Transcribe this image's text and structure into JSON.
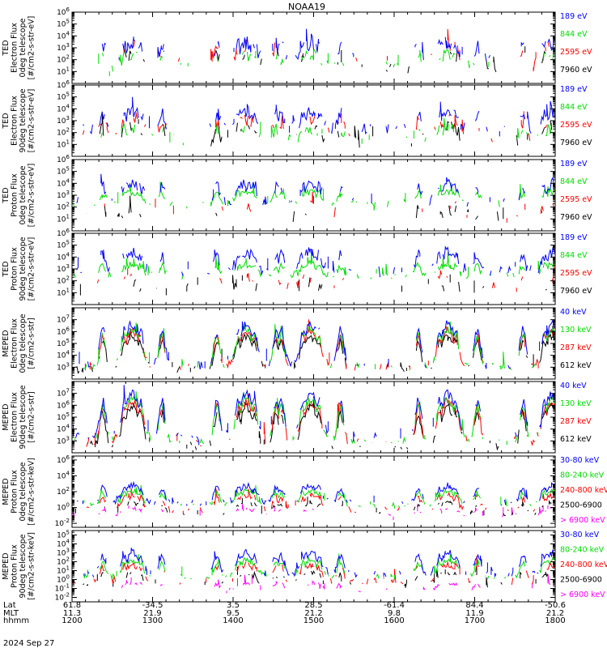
{
  "title": "NOAA19",
  "date_label": "2024 Sep 27",
  "chart_data": [
    {
      "type": "line",
      "ylabel": [
        "TED",
        "Electron Flux",
        "0deg telescope",
        "[#/cm2-s-str-eV]"
      ],
      "log_ticks": [
        1,
        2,
        3,
        4,
        5,
        6
      ],
      "ylim_exp": [
        0,
        6
      ],
      "series": [
        {
          "name": "7960 eV",
          "color": "#000000",
          "base": 1.4,
          "amp": 1.2,
          "noise": 0.6,
          "mask": 0.35
        },
        {
          "name": "2595 eV",
          "color": "#ff0000",
          "base": 1.8,
          "amp": 1.4,
          "noise": 0.6,
          "mask": 0.35
        },
        {
          "name": "844 eV",
          "color": "#00dd00",
          "base": 1.4,
          "amp": 1.0,
          "noise": 0.5,
          "mask": 0.45
        },
        {
          "name": "189 eV",
          "color": "#0000ff",
          "base": 2.0,
          "amp": 1.4,
          "noise": 0.6,
          "mask": 0.7
        }
      ]
    },
    {
      "type": "line",
      "ylabel": [
        "TED",
        "Electron Flux",
        "90deg telescope",
        "[#/cm2-s-str-eV]"
      ],
      "log_ticks": [
        1,
        2,
        3,
        4,
        5,
        6
      ],
      "ylim_exp": [
        0,
        6
      ],
      "series": [
        {
          "name": "7960 eV",
          "color": "#000000",
          "base": 1.2,
          "amp": 1.3,
          "noise": 0.6,
          "mask": 0.45
        },
        {
          "name": "2595 eV",
          "color": "#ff0000",
          "base": 1.8,
          "amp": 1.3,
          "noise": 0.6,
          "mask": 0.45
        },
        {
          "name": "844 eV",
          "color": "#00dd00",
          "base": 1.4,
          "amp": 1.0,
          "noise": 0.5,
          "mask": 0.5
        },
        {
          "name": "189 eV",
          "color": "#0000ff",
          "base": 2.3,
          "amp": 1.5,
          "noise": 0.5,
          "mask": 0.8
        }
      ]
    },
    {
      "type": "line",
      "ylabel": [
        "TED",
        "Proton Flux",
        "0deg telescope",
        "[#/cm2-s-str-eV]"
      ],
      "log_ticks": [
        1,
        2,
        3,
        4,
        5,
        6
      ],
      "ylim_exp": [
        0,
        6
      ],
      "series": [
        {
          "name": "7960 eV",
          "color": "#000000",
          "base": 1.2,
          "amp": 0.5,
          "noise": 0.6,
          "mask": 0.3
        },
        {
          "name": "2595 eV",
          "color": "#ff0000",
          "base": 1.5,
          "amp": 0.6,
          "noise": 0.5,
          "mask": 0.25
        },
        {
          "name": "844 eV",
          "color": "#00dd00",
          "base": 2.3,
          "amp": 1.0,
          "noise": 0.3,
          "mask": 0.95
        },
        {
          "name": "189 eV",
          "color": "#0000ff",
          "base": 2.4,
          "amp": 1.6,
          "noise": 0.5,
          "mask": 0.75
        }
      ]
    },
    {
      "type": "line",
      "ylabel": [
        "TED",
        "Proton Flux",
        "90deg telescope",
        "[#/cm2-s-str-eV]"
      ],
      "log_ticks": [
        1,
        2,
        3,
        4,
        5,
        6
      ],
      "ylim_exp": [
        0,
        6
      ],
      "series": [
        {
          "name": "7960 eV",
          "color": "#000000",
          "base": 1.2,
          "amp": 0.5,
          "noise": 0.6,
          "mask": 0.3
        },
        {
          "name": "2595 eV",
          "color": "#ff0000",
          "base": 1.5,
          "amp": 0.8,
          "noise": 0.5,
          "mask": 0.3
        },
        {
          "name": "844 eV",
          "color": "#00dd00",
          "base": 2.4,
          "amp": 1.0,
          "noise": 0.3,
          "mask": 0.95
        },
        {
          "name": "189 eV",
          "color": "#0000ff",
          "base": 2.8,
          "amp": 1.6,
          "noise": 0.5,
          "mask": 0.8
        }
      ]
    },
    {
      "type": "line",
      "ylabel": [
        "MEPED",
        "Electron Flux",
        "0deg telescope",
        "[#/cm2-s-str]"
      ],
      "log_ticks": [
        3,
        4,
        5,
        6,
        7
      ],
      "ylim_exp": [
        2,
        8
      ],
      "series": [
        {
          "name": "612 keV",
          "color": "#000000",
          "base": 2.8,
          "amp": 2.8,
          "noise": 0.3,
          "mask": 0.85
        },
        {
          "name": "287 keV",
          "color": "#ff0000",
          "base": 3.0,
          "amp": 3.0,
          "noise": 0.3,
          "mask": 0.85
        },
        {
          "name": "130 keV",
          "color": "#00dd00",
          "base": 3.0,
          "amp": 3.2,
          "noise": 0.3,
          "mask": 0.85
        },
        {
          "name": "40 keV",
          "color": "#0000ff",
          "base": 3.2,
          "amp": 3.4,
          "noise": 0.4,
          "mask": 0.85
        }
      ]
    },
    {
      "type": "line",
      "ylabel": [
        "MEPED",
        "Electron Flux",
        "90deg telescope",
        "[#/cm2-s-str]"
      ],
      "log_ticks": [
        3,
        4,
        5,
        6,
        7
      ],
      "ylim_exp": [
        2,
        8
      ],
      "series": [
        {
          "name": "612 keV",
          "color": "#000000",
          "base": 2.6,
          "amp": 3.2,
          "noise": 0.4,
          "mask": 0.8
        },
        {
          "name": "287 keV",
          "color": "#ff0000",
          "base": 2.9,
          "amp": 3.4,
          "noise": 0.4,
          "mask": 0.85
        },
        {
          "name": "130 keV",
          "color": "#00dd00",
          "base": 3.0,
          "amp": 3.5,
          "noise": 0.3,
          "mask": 0.85
        },
        {
          "name": "40 keV",
          "color": "#0000ff",
          "base": 3.3,
          "amp": 3.6,
          "noise": 0.4,
          "mask": 0.85
        }
      ]
    },
    {
      "type": "line",
      "ylabel": [
        "MEPED",
        "Proton Flux",
        "0deg telescope",
        "[#/cm2-s-str-keV]"
      ],
      "log_ticks": [
        -2,
        0,
        2,
        4,
        6
      ],
      "ylim_exp": [
        -2.5,
        6.5
      ],
      "series": [
        {
          "name": "> 6900 keV",
          "color": "#ff00ff",
          "base": -1.0,
          "amp": 0.8,
          "noise": 0.2,
          "mask": 0.5
        },
        {
          "name": "2500-6900",
          "color": "#000000",
          "base": -0.8,
          "amp": 1.4,
          "noise": 0.3,
          "mask": 0.5
        },
        {
          "name": "240-800 keV",
          "color": "#ff0000",
          "base": -0.3,
          "amp": 1.8,
          "noise": 0.4,
          "mask": 0.7
        },
        {
          "name": "80-240 keV",
          "color": "#00dd00",
          "base": 0.3,
          "amp": 1.8,
          "noise": 0.3,
          "mask": 0.9
        },
        {
          "name": "30-80 keV",
          "color": "#0000ff",
          "base": 0.6,
          "amp": 2.2,
          "noise": 0.4,
          "mask": 0.95
        }
      ]
    },
    {
      "type": "line",
      "ylabel": [
        "MEPED",
        "Proton Flux",
        "90deg telescope",
        "[#/cm2-s-str-keV]"
      ],
      "log_ticks": [
        -2,
        -1,
        0,
        1,
        2,
        3,
        4,
        5
      ],
      "ylim_exp": [
        -2.5,
        5.5
      ],
      "series": [
        {
          "name": "> 6900 keV",
          "color": "#ff00ff",
          "base": -1.2,
          "amp": 0.8,
          "noise": 0.2,
          "mask": 0.5
        },
        {
          "name": "2500-6900",
          "color": "#000000",
          "base": -0.6,
          "amp": 1.4,
          "noise": 0.3,
          "mask": 0.5
        },
        {
          "name": "240-800 keV",
          "color": "#ff0000",
          "base": -0.2,
          "amp": 1.9,
          "noise": 0.4,
          "mask": 0.7
        },
        {
          "name": "80-240 keV",
          "color": "#00dd00",
          "base": 0.3,
          "amp": 1.9,
          "noise": 0.3,
          "mask": 0.9
        },
        {
          "name": "30-80 keV",
          "color": "#0000ff",
          "base": 0.6,
          "amp": 2.4,
          "noise": 0.4,
          "mask": 0.95
        }
      ]
    }
  ],
  "x_axis": {
    "row_labels": [
      "Lat",
      "MLT",
      "hhmm"
    ],
    "ticks": [
      {
        "lat": "61.8",
        "mlt": "11.3",
        "hhmm": "1200"
      },
      {
        "lat": "-34.5",
        "mlt": "21.9",
        "hhmm": "1300"
      },
      {
        "lat": "3.5",
        "mlt": "9.5",
        "hhmm": "1400"
      },
      {
        "lat": "28.5",
        "mlt": "21.2",
        "hhmm": "1500"
      },
      {
        "lat": "-61.4",
        "mlt": "9.8",
        "hhmm": "1600"
      },
      {
        "lat": "84.4",
        "mlt": "11.9",
        "hhmm": "1700"
      },
      {
        "lat": "-50.6",
        "mlt": "21.2",
        "hhmm": "1800"
      }
    ],
    "minutes_start": 720,
    "minutes_end": 1080
  },
  "passes_minutes": [
    765,
    850,
    898,
    1000,
    1078
  ],
  "auroral_offsets": [
    -22,
    -6,
    6,
    22
  ]
}
